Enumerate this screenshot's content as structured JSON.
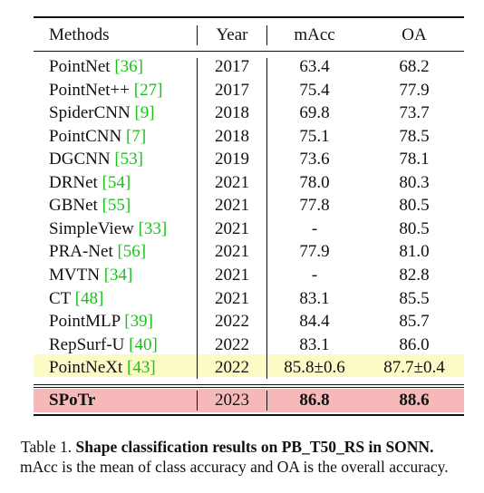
{
  "table": {
    "headers": {
      "method": "Methods",
      "year": "Year",
      "macc": "mAcc",
      "oa": "OA"
    },
    "rows": [
      {
        "method": "PointNet",
        "cite": "[36]",
        "year": "2017",
        "macc": "63.4",
        "oa": "68.2"
      },
      {
        "method": "PointNet++",
        "cite": "[27]",
        "year": "2017",
        "macc": "75.4",
        "oa": "77.9"
      },
      {
        "method": "SpiderCNN",
        "cite": "[9]",
        "year": "2018",
        "macc": "69.8",
        "oa": "73.7"
      },
      {
        "method": "PointCNN",
        "cite": "[7]",
        "year": "2018",
        "macc": "75.1",
        "oa": "78.5"
      },
      {
        "method": "DGCNN",
        "cite": "[53]",
        "year": "2019",
        "macc": "73.6",
        "oa": "78.1"
      },
      {
        "method": "DRNet",
        "cite": "[54]",
        "year": "2021",
        "macc": "78.0",
        "oa": "80.3"
      },
      {
        "method": "GBNet",
        "cite": "[55]",
        "year": "2021",
        "macc": "77.8",
        "oa": "80.5"
      },
      {
        "method": "SimpleView",
        "cite": "[33]",
        "year": "2021",
        "macc": "-",
        "oa": "80.5"
      },
      {
        "method": "PRA-Net",
        "cite": "[56]",
        "year": "2021",
        "macc": "77.9",
        "oa": "81.0"
      },
      {
        "method": "MVTN",
        "cite": "[34]",
        "year": "2021",
        "macc": "-",
        "oa": "82.8"
      },
      {
        "method": "CT",
        "cite": "[48]",
        "year": "2021",
        "macc": "83.1",
        "oa": "85.5"
      },
      {
        "method": "PointMLP",
        "cite": "[39]",
        "year": "2022",
        "macc": "84.4",
        "oa": "85.7"
      },
      {
        "method": "RepSurf-U",
        "cite": "[40]",
        "year": "2022",
        "macc": "83.1",
        "oa": "86.0"
      },
      {
        "method": "PointNeXt",
        "cite": "[43]",
        "year": "2022",
        "macc": "85.8±0.6",
        "oa": "87.7±0.4"
      }
    ],
    "ours": {
      "method": "SPoTr",
      "year": "2023",
      "macc": "86.8",
      "oa": "88.6"
    },
    "colors": {
      "citation": "#19c319",
      "highlight_prev": "#fcfbc6",
      "highlight_ours": "#f6b8b8"
    }
  },
  "caption": {
    "label": "Table 1.",
    "bold": "Shape classification results on PB_T50_RS in SONN.",
    "text": "mAcc is the mean of class accuracy and OA is the overall accuracy."
  }
}
